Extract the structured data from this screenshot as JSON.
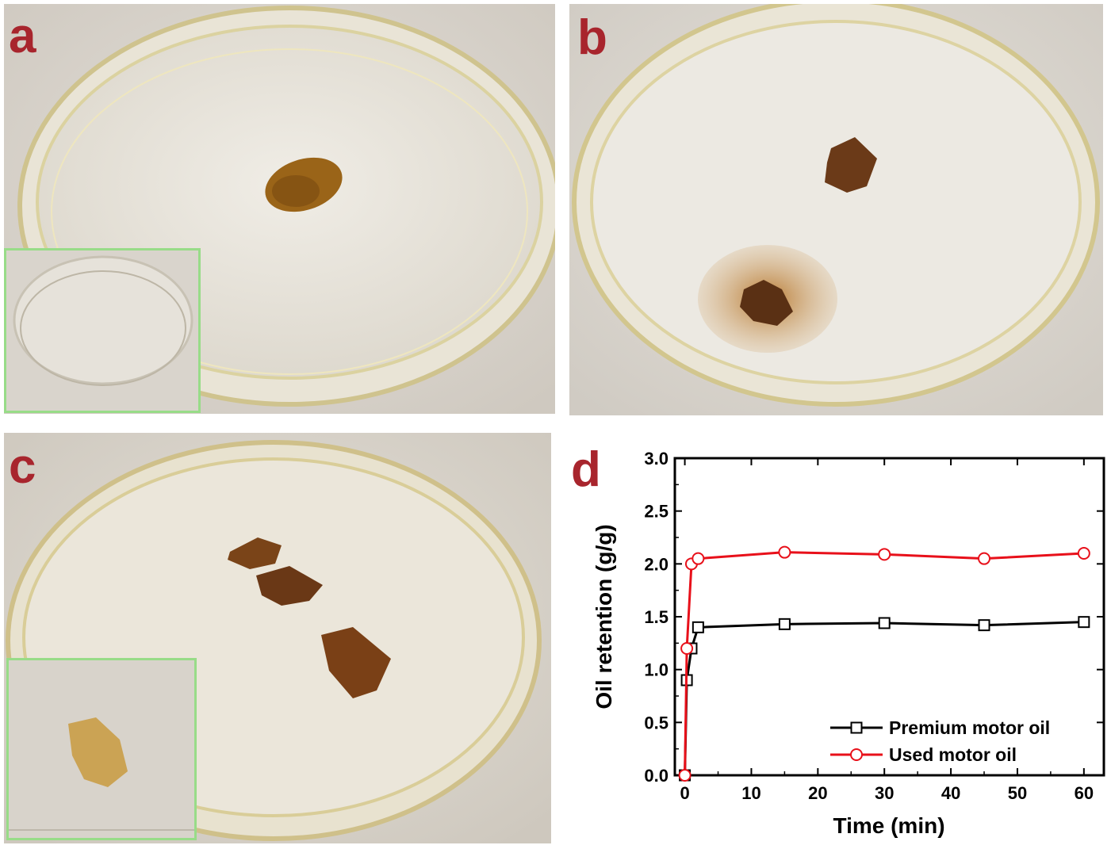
{
  "panels": {
    "a": {
      "label": "a"
    },
    "b": {
      "label": "b"
    },
    "c": {
      "label": "c"
    },
    "d": {
      "label": "d"
    }
  },
  "chart_data": {
    "type": "line",
    "xlabel": "Time (min)",
    "ylabel": "Oil  retention (g/g)",
    "xlim": [
      -1.5,
      63
    ],
    "ylim": [
      0,
      3.0
    ],
    "xticks": [
      0,
      10,
      20,
      30,
      40,
      50,
      60
    ],
    "yticks": [
      "0.0",
      "0.5",
      "1.0",
      "1.5",
      "2.0",
      "2.5",
      "3.0"
    ],
    "legend_position": "bottom-right",
    "series": [
      {
        "name": "Premium motor oil",
        "color": "#000000",
        "marker": "square",
        "x": [
          0,
          0.3,
          1,
          2,
          15,
          30,
          45,
          60
        ],
        "y": [
          0,
          0.9,
          1.2,
          1.4,
          1.43,
          1.44,
          1.42,
          1.45
        ]
      },
      {
        "name": "Used motor oil",
        "color": "#e8101a",
        "marker": "circle",
        "x": [
          0,
          0.3,
          1,
          2,
          15,
          30,
          45,
          60
        ],
        "y": [
          0,
          1.2,
          2.0,
          2.05,
          2.11,
          2.09,
          2.05,
          2.1
        ]
      }
    ]
  }
}
